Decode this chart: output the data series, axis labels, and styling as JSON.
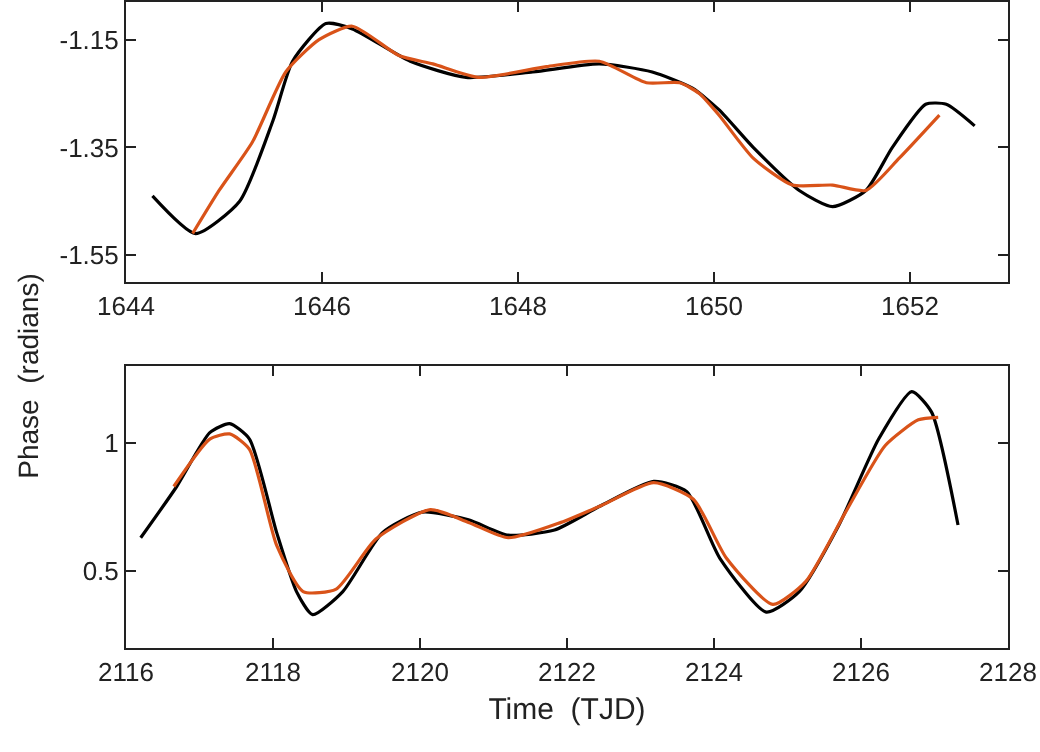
{
  "chart_data": [
    {
      "type": "line",
      "ylabel": "Phase  (radians)",
      "xlim": [
        1644,
        1653
      ],
      "xticks": [
        1644,
        1646,
        1648,
        1650,
        1652
      ],
      "ylim": [
        -1.6,
        -1.08
      ],
      "yticks": [
        -1.55,
        -1.35,
        -1.15
      ],
      "series": [
        {
          "color": "#000000",
          "x": [
            1644.27,
            1644.71,
            1645.16,
            1645.5,
            1645.7,
            1646.04,
            1646.31,
            1646.9,
            1647.47,
            1648.15,
            1648.83,
            1649.37,
            1649.78,
            1650.05,
            1650.4,
            1650.87,
            1651.21,
            1651.55,
            1651.82,
            1652.16,
            1652.37,
            1652.66
          ],
          "values": [
            -1.44,
            -1.51,
            -1.45,
            -1.3,
            -1.19,
            -1.12,
            -1.13,
            -1.19,
            -1.22,
            -1.21,
            -1.195,
            -1.21,
            -1.24,
            -1.28,
            -1.35,
            -1.43,
            -1.46,
            -1.43,
            -1.35,
            -1.27,
            -1.27,
            -1.31
          ]
        },
        {
          "color": "#d95319",
          "x": [
            1644.68,
            1644.95,
            1645.29,
            1645.63,
            1645.97,
            1646.31,
            1646.79,
            1647.13,
            1647.6,
            1648.29,
            1648.83,
            1649.31,
            1649.65,
            1649.85,
            1650.05,
            1650.4,
            1650.8,
            1651.21,
            1651.55,
            1651.89,
            1652.3
          ],
          "values": [
            -1.51,
            -1.43,
            -1.34,
            -1.21,
            -1.15,
            -1.125,
            -1.18,
            -1.195,
            -1.22,
            -1.2,
            -1.19,
            -1.23,
            -1.23,
            -1.25,
            -1.29,
            -1.37,
            -1.42,
            -1.42,
            -1.43,
            -1.37,
            -1.29
          ]
        }
      ]
    },
    {
      "type": "line",
      "xlabel": "Time  (TJD)",
      "xlim": [
        2116,
        2128
      ],
      "xticks": [
        2116,
        2118,
        2120,
        2122,
        2124,
        2126,
        2128
      ],
      "ylim": [
        0.2,
        1.3
      ],
      "yticks": [
        0.5,
        1
      ],
      "series": [
        {
          "color": "#000000",
          "x": [
            2116.2,
            2116.69,
            2117.14,
            2117.41,
            2117.68,
            2118.05,
            2118.32,
            2118.54,
            2118.95,
            2119.49,
            2120.03,
            2120.66,
            2121.2,
            2121.83,
            2122.46,
            2123.18,
            2123.63,
            2124.08,
            2124.71,
            2125.16,
            2125.7,
            2126.24,
            2126.69,
            2126.96,
            2127.32
          ],
          "values": [
            0.63,
            0.83,
            1.04,
            1.075,
            1.015,
            0.65,
            0.42,
            0.33,
            0.42,
            0.65,
            0.73,
            0.7,
            0.64,
            0.66,
            0.755,
            0.85,
            0.81,
            0.55,
            0.34,
            0.42,
            0.68,
            1.015,
            1.2,
            1.12,
            0.68
          ]
        },
        {
          "color": "#d95319",
          "x": [
            2116.65,
            2117.14,
            2117.41,
            2117.68,
            2118.05,
            2118.41,
            2118.86,
            2119.4,
            2120.14,
            2120.66,
            2121.2,
            2121.92,
            2122.46,
            2123.18,
            2123.72,
            2124.17,
            2124.8,
            2125.25,
            2125.79,
            2126.33,
            2126.78,
            2127.05
          ],
          "values": [
            0.83,
            1.015,
            1.035,
            0.975,
            0.6,
            0.42,
            0.43,
            0.625,
            0.74,
            0.69,
            0.63,
            0.69,
            0.755,
            0.845,
            0.78,
            0.55,
            0.37,
            0.46,
            0.73,
            0.99,
            1.09,
            1.1
          ]
        }
      ]
    }
  ]
}
